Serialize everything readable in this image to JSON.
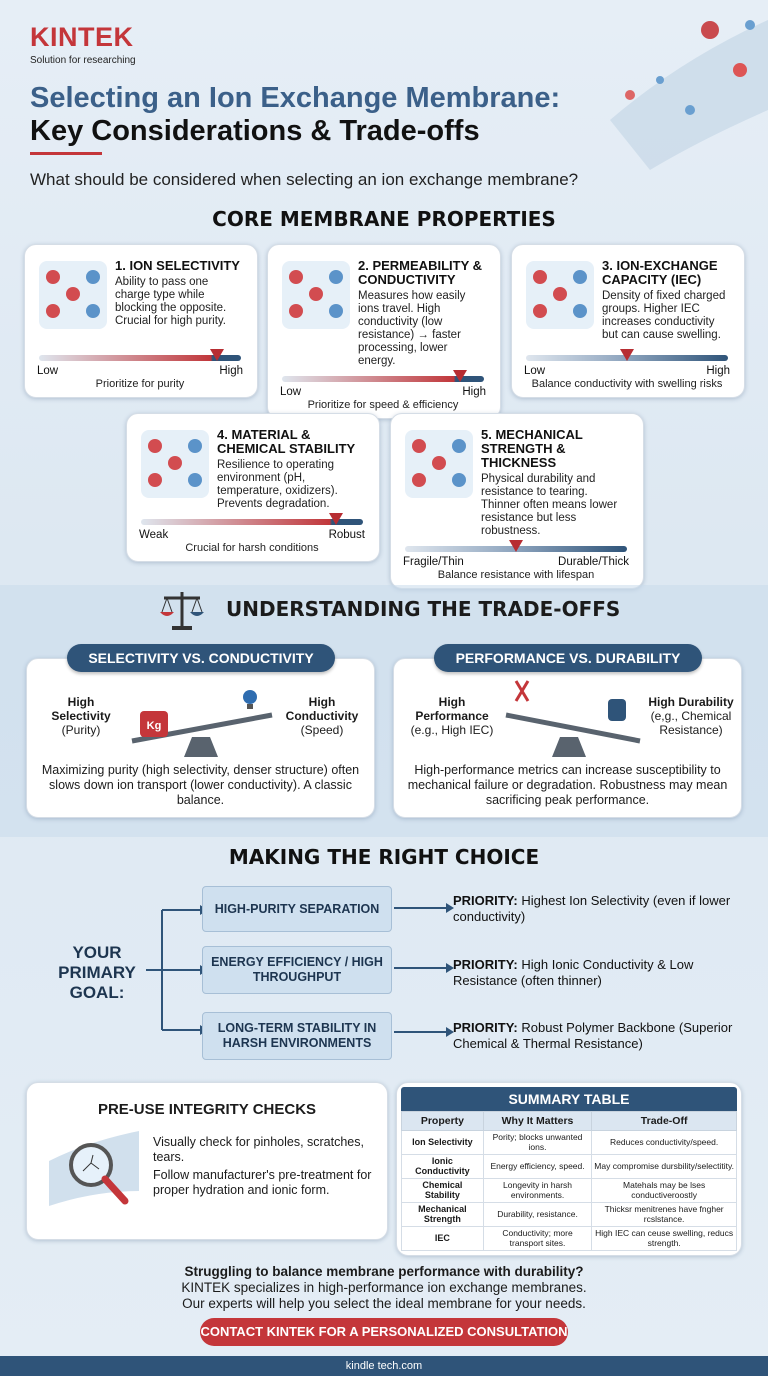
{
  "header": {
    "logo": "KINTEK",
    "logo_tagline": "Solution for researching",
    "title_line1": "Selecting an Ion Exchange Membrane:",
    "title_line2": "Key Considerations & Trade-offs",
    "question": "What should be considered when selecting an ion exchange membrane?"
  },
  "core": {
    "heading": "CORE MEMBRANE PROPERTIES",
    "cards": [
      {
        "title": "1. ION SELECTIVITY",
        "desc": "Ability to pass one charge type while blocking the opposite. Crucial for high purity.",
        "low": "Low",
        "high": "High",
        "note": "Prioritize for purity",
        "level": 0.88,
        "icon": "membrane-ions-icon"
      },
      {
        "title": "2. PERMEABILITY & CONDUCTIVITY",
        "desc": "Measures how easily ions travel. High conductivity (low resistance) → faster processing, lower energy.",
        "low": "Low",
        "high": "High",
        "note": "Prioritize for speed & efficiency",
        "level": 0.88,
        "icon": "ion-channel-icon"
      },
      {
        "title": "3. ION-EXCHANGE CAPACITY (IEC)",
        "desc": "Density of fixed charged groups. Higher IEC increases conductivity but can cause swelling.",
        "low": "Low",
        "high": "High",
        "note": "Balance conductivity with swelling risks",
        "level": 0.5,
        "icon": "polymer-network-icon"
      },
      {
        "title": "4. MATERIAL & CHEMICAL STABILITY",
        "desc": "Resilience to operating environment (pH, temperature, oxidizers). Prevents degradation.",
        "low": "Weak",
        "high": "Robust",
        "note": "Crucial for harsh conditions",
        "level": 0.88,
        "icon": "shield-icon"
      },
      {
        "title": "5. MECHANICAL STRENGTH & THICKNESS",
        "desc": "Physical durability and resistance to tearing. Thinner often means lower resistance but less robustness.",
        "low": "Fragile/Thin",
        "high": "Durable/Thick",
        "note": "Balance resistance with lifespan",
        "level": 0.5,
        "icon": "compressed-membrane-icon"
      }
    ]
  },
  "tradeoffs": {
    "heading": "UNDERSTANDING THE TRADE-OFFS",
    "items": [
      {
        "title": "SELECTIVITY VS. CONDUCTIVITY",
        "left_bold": "High Selectivity",
        "left_sub": "(Purity)",
        "right_bold": "High Conductivity",
        "right_sub": "(Speed)",
        "weight_label": "Kg",
        "desc": "Maximizing purity (high selectivity, denser structure) often slows down ion transport (lower conductivity). A classic balance."
      },
      {
        "title": "PERFORMANCE VS. DURABILITY",
        "left_bold": "High Performance",
        "left_sub": "(e.g., High IEC)",
        "right_bold": "High Durability",
        "right_sub": "(e,g., Chemical Resistance)",
        "desc": "High-performance metrics can increase susceptibility to mechanical failure or degradation. Robustness may mean sacrificing peak performance."
      }
    ]
  },
  "choice": {
    "heading": "MAKING THE RIGHT CHOICE",
    "goal": "YOUR PRIMARY GOAL:",
    "options": [
      {
        "label": "HIGH-PURITY SEPARATION",
        "priority_key": "PRIORITY:",
        "priority": " Highest Ion Selectivity (even if lower conductivity)"
      },
      {
        "label": "ENERGY EFFICIENCY / HIGH THROUGHPUT",
        "priority_key": "PRIORITY:",
        "priority": " High Ionic Conductivity & Low Resistance (often thinner)"
      },
      {
        "label": "LONG-TERM STABILITY IN HARSH ENVIRONMENTS",
        "priority_key": "PRIORITY:",
        "priority": " Robust Polymer Backbone (Superior Chemical & Thermal Resistance)"
      }
    ]
  },
  "checks": {
    "heading": "PRE-USE INTEGRITY CHECKS",
    "line1": "Visually check for pinholes, scratches, tears.",
    "line2": "Follow manufacturer's pre-treatment for proper hydration and ionic form."
  },
  "summary": {
    "title": "SUMMARY TABLE",
    "columns": [
      "Property",
      "Why It Matters",
      "Trade-Off"
    ],
    "rows": [
      [
        "Ion Selectivity",
        "Pority; blocks unwanted ions.",
        "Reduces conductivity/speed."
      ],
      [
        "Ionic Conductivity",
        "Energy efficiency, speed.",
        "May compromise dursbility/selectitity."
      ],
      [
        "Chemical Stability",
        "Longevity in harsh environments.",
        "Matehals may be lses conductiveroostly"
      ],
      [
        "Mechanical Strength",
        "Durability, resistance.",
        "Thicksr menitrenes have fngher rcslstance."
      ],
      [
        "IEC",
        "Conductivity; more transport sites.",
        "High IEC can ceuse swelling, reducs strength."
      ]
    ]
  },
  "cta": {
    "question": "Struggling to balance membrane performance with durability?",
    "line1": "KINTEK specializes in high-performance ion exchange membranes.",
    "line2": "Our experts will help you select the ideal membrane for your needs.",
    "button": "CONTACT KINTEK FOR A PERSONALIZED CONSULTATION"
  },
  "footer": {
    "url": "kindle tech.com"
  },
  "colors": {
    "brand_red": "#c4363a",
    "navy": "#2f5479",
    "title_blue": "#3b6089"
  }
}
